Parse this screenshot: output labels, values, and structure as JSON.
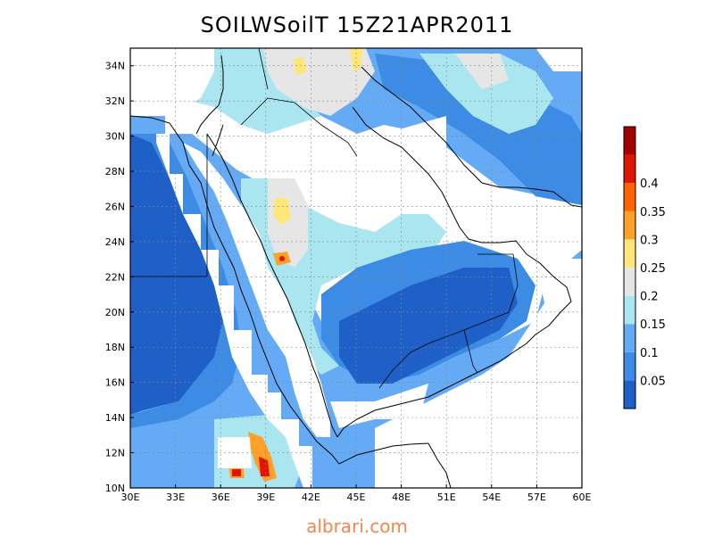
{
  "title": "SOILWSoilT 15Z21APR2011",
  "watermark": "albrari.com",
  "map": {
    "lon_range": [
      30,
      60
    ],
    "lat_range": [
      10,
      35
    ],
    "x_ticks": [
      "30E",
      "33E",
      "36E",
      "39E",
      "42E",
      "45E",
      "48E",
      "51E",
      "54E",
      "57E",
      "60E"
    ],
    "y_ticks": [
      "10N",
      "12N",
      "14N",
      "16N",
      "18N",
      "20N",
      "22N",
      "24N",
      "26N",
      "28N",
      "30N",
      "32N",
      "34N"
    ],
    "grid": true
  },
  "colorbar": {
    "labels": [
      "0.05",
      "0.1",
      "0.15",
      "0.2",
      "0.25",
      "0.3",
      "0.35",
      "0.4"
    ],
    "colors": [
      "#1f5fc8",
      "#3c8ce6",
      "#64aaf5",
      "#aae6f0",
      "#e6e6e6",
      "#ffe678",
      "#ffa028",
      "#ff6400",
      "#e11400",
      "#a50000"
    ]
  },
  "field_colors": {
    "lowest": "#1f5fc8",
    "low": "#3c8ce6",
    "mid": "#64aaf5",
    "light": "#aae6f0",
    "neutral": "#e6e6e6",
    "yellow": "#ffe678",
    "orange": "#ffa028",
    "red": "#e11400"
  }
}
